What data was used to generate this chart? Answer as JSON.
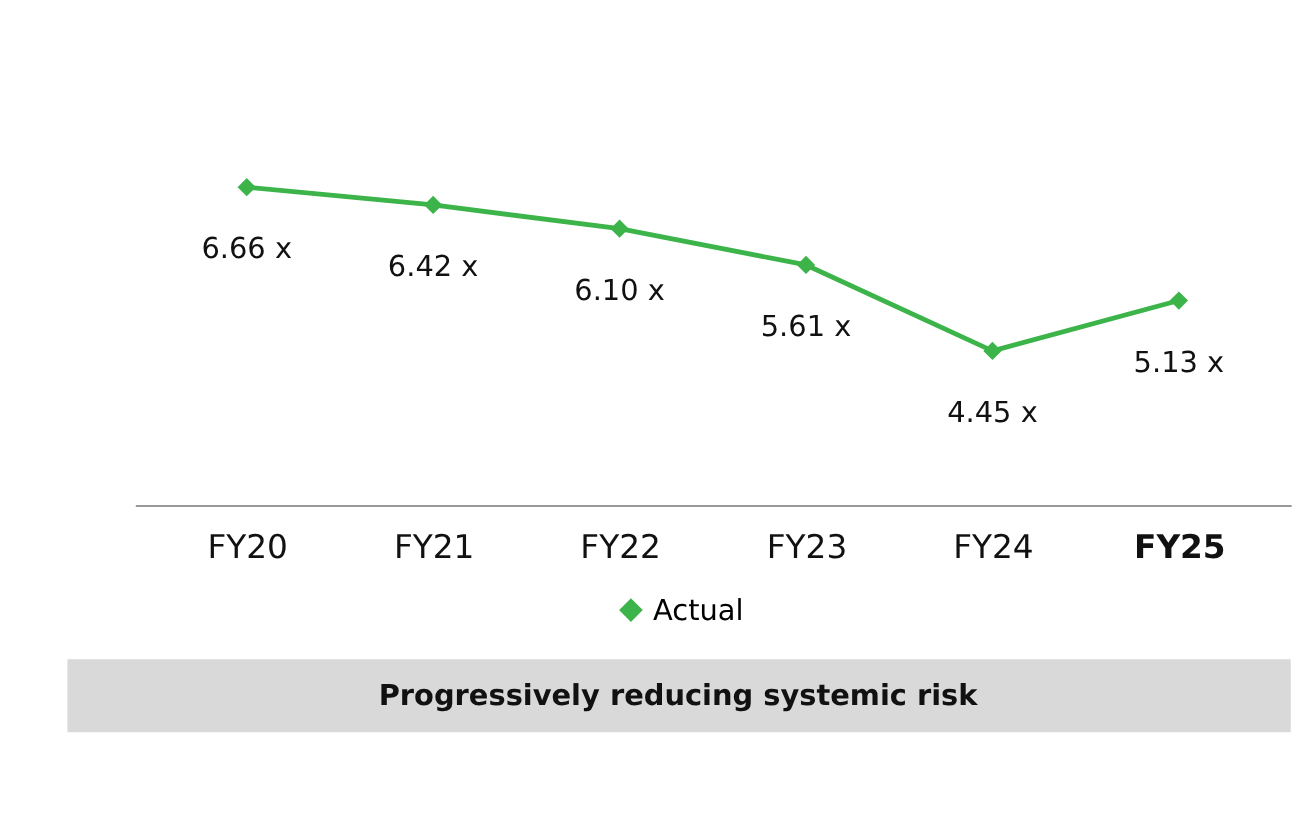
{
  "chart_data": {
    "type": "line",
    "categories": [
      "FY20",
      "FY21",
      "FY22",
      "FY23",
      "FY24",
      "FY25"
    ],
    "series": [
      {
        "name": "Actual",
        "color": "#3cb44a",
        "values": [
          6.66,
          6.42,
          6.1,
          5.61,
          4.45,
          5.13
        ],
        "value_labels": [
          "6.66 x",
          "6.42 x",
          "6.10 x",
          "5.61 x",
          "4.45 x",
          "5.13 x"
        ]
      }
    ],
    "tick_labels": "x",
    "marker": "diamond",
    "legend": "bottom",
    "grid": false,
    "annotations": [
      "Progressively reducing systemic risk"
    ]
  }
}
